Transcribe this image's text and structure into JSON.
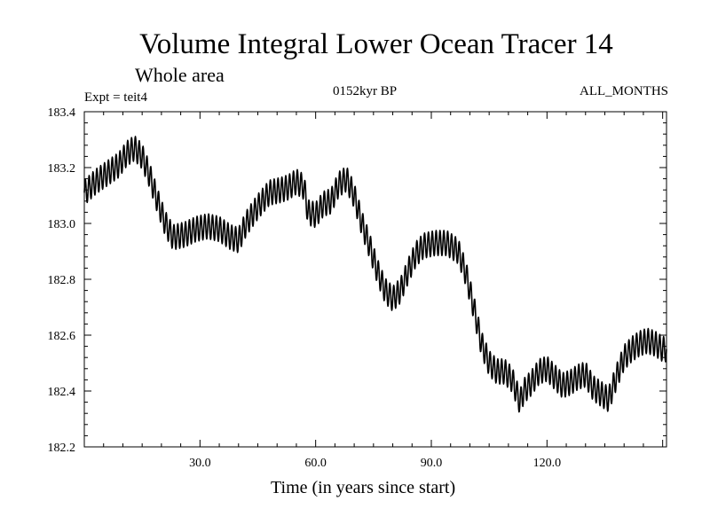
{
  "chart_data": {
    "type": "line",
    "title": "Volume Integral Lower Ocean Tracer 14",
    "subtitle": "Whole area",
    "experiment": "Expt = teit4",
    "period": "0152kyr BP",
    "months": "ALL_MONTHS",
    "xlabel": "Time (in years since start)",
    "ylabel": "",
    "xlim": [
      0,
      151
    ],
    "ylim": [
      182.2,
      183.4
    ],
    "x_ticks": [
      30,
      60,
      90,
      120
    ],
    "x_tick_labels": [
      "30.0",
      "60.0",
      "90.0",
      "120.0"
    ],
    "y_ticks": [
      182.2,
      182.4,
      182.6,
      182.8,
      183.0,
      183.2,
      183.4
    ],
    "y_tick_labels": [
      "182.2",
      "182.4",
      "182.6",
      "182.8",
      "183.0",
      "183.2",
      "183.4"
    ],
    "grid": false,
    "seasonal_amplitude": 0.045,
    "series": [
      {
        "name": "Lower Ocean Tracer 14",
        "x": [
          0,
          3,
          6,
          9,
          11,
          13,
          15,
          17,
          19,
          21,
          23,
          26,
          29,
          32,
          35,
          38,
          40,
          42,
          45,
          48,
          51,
          53,
          55,
          57,
          58,
          60,
          62,
          64,
          66,
          68,
          70,
          72,
          74,
          76,
          78,
          80,
          82,
          84,
          86,
          88,
          91,
          94,
          97,
          99,
          101,
          103,
          105,
          107,
          109,
          111,
          113,
          114,
          116,
          118,
          120,
          122,
          124,
          126,
          128,
          130,
          132,
          134,
          136,
          138,
          140,
          142,
          144,
          146,
          148,
          150,
          151
        ],
        "y": [
          183.11,
          183.15,
          183.18,
          183.21,
          183.25,
          183.27,
          183.24,
          183.17,
          183.08,
          183.0,
          182.95,
          182.96,
          182.98,
          182.99,
          182.98,
          182.95,
          182.94,
          183.0,
          183.06,
          183.11,
          183.12,
          183.13,
          183.15,
          183.13,
          183.04,
          183.03,
          183.07,
          183.08,
          183.14,
          183.16,
          183.1,
          183.0,
          182.92,
          182.83,
          182.76,
          182.73,
          182.76,
          182.83,
          182.89,
          182.92,
          182.93,
          182.93,
          182.9,
          182.82,
          182.7,
          182.57,
          182.5,
          182.47,
          182.47,
          182.44,
          182.36,
          182.4,
          182.43,
          182.47,
          182.48,
          182.45,
          182.42,
          182.43,
          182.45,
          182.46,
          182.41,
          182.39,
          182.37,
          182.45,
          182.52,
          182.55,
          182.57,
          182.58,
          182.57,
          182.55,
          182.55
        ]
      }
    ]
  },
  "colors": {
    "line": "#000000",
    "axis": "#000000",
    "background": "#ffffff"
  }
}
